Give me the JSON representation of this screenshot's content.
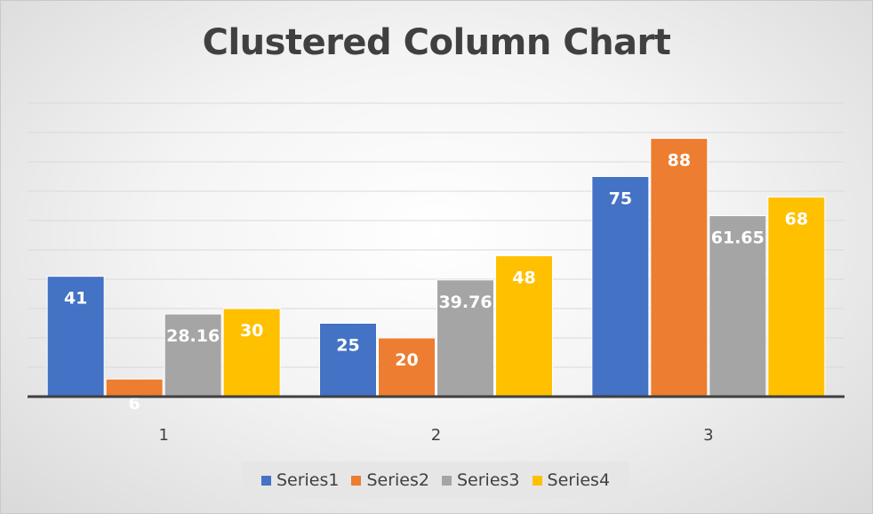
{
  "chart_data": {
    "type": "bar",
    "title": "Clustered Column Chart",
    "xlabel": "",
    "ylabel": "",
    "categories": [
      "1",
      "2",
      "3"
    ],
    "series": [
      {
        "name": "Series1",
        "values": [
          41,
          25,
          75
        ],
        "labels": [
          "41",
          "25",
          "75"
        ]
      },
      {
        "name": "Series2",
        "values": [
          6,
          20,
          88
        ],
        "labels": [
          "6",
          "20",
          "88"
        ]
      },
      {
        "name": "Series3",
        "values": [
          28.16,
          39.76,
          61.65
        ],
        "labels": [
          "28.16",
          "39.76",
          "61.65"
        ]
      },
      {
        "name": "Series4",
        "values": [
          30,
          48,
          68
        ],
        "labels": [
          "30",
          "48",
          "68"
        ]
      }
    ],
    "ylim": [
      0,
      100
    ],
    "gridline_step": 10,
    "grid": true,
    "legend_position": "bottom",
    "colors": {
      "Series1": "#4472C4",
      "Series2": "#ED7D31",
      "Series3": "#A5A5A5",
      "Series4": "#FFC000"
    }
  }
}
